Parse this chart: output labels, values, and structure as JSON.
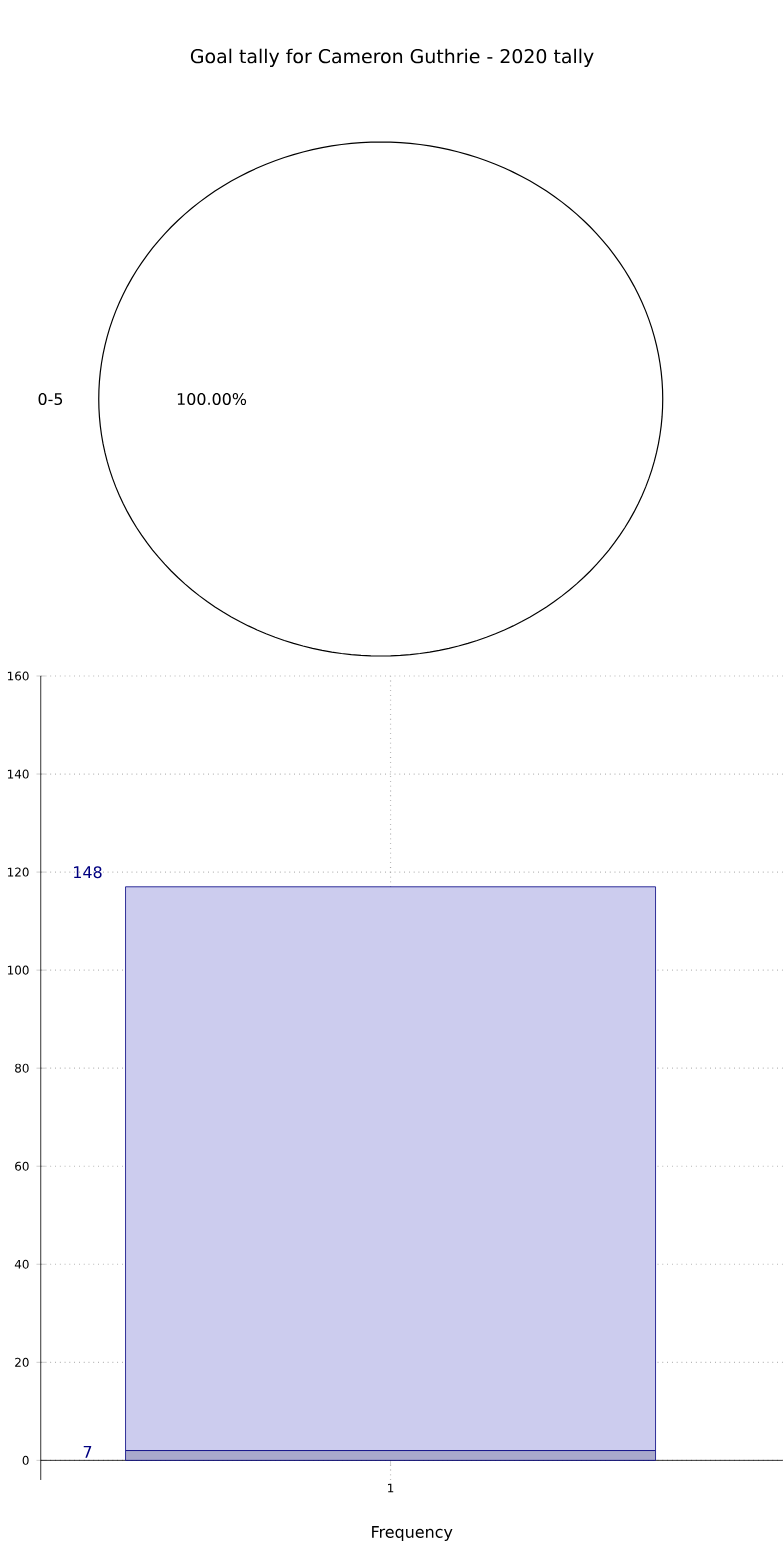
{
  "chart_data": [
    {
      "type": "pie",
      "title": "Goal tally for Cameron Guthrie - 2020 tally",
      "categories": [
        "0-5"
      ],
      "values": [
        100
      ],
      "colors": [
        "#ffffff"
      ],
      "value_labels": [
        "100.00%"
      ]
    },
    {
      "type": "bar",
      "xlabel": "Frequency",
      "categories": [
        "1"
      ],
      "stacked": true,
      "series": [
        {
          "color": "#aaaacc",
          "values": [
            2
          ]
        },
        {
          "color": "#ccccee",
          "values": [
            115
          ]
        }
      ],
      "annotations": [
        "148",
        "7"
      ],
      "ylim": [
        -4,
        160
      ],
      "yticks": [
        0,
        20,
        40,
        60,
        80,
        100,
        120,
        140,
        160
      ],
      "grid": true
    }
  ]
}
